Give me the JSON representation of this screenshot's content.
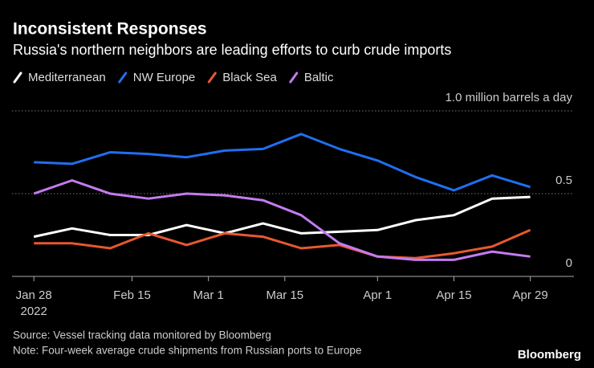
{
  "chart_data": {
    "type": "line",
    "title": "Inconsistent Responses",
    "subtitle": "Russia's northern neighbors are leading efforts to curb crude imports",
    "x": [
      "2022-01-28",
      "2022-02-04",
      "2022-02-11",
      "2022-02-18",
      "2022-02-25",
      "2022-03-04",
      "2022-03-11",
      "2022-03-18",
      "2022-03-25",
      "2022-04-01",
      "2022-04-08",
      "2022-04-15",
      "2022-04-22",
      "2022-04-29"
    ],
    "series": [
      {
        "name": "Mediterranean",
        "color": "#ffffff",
        "values": [
          0.24,
          0.29,
          0.25,
          0.25,
          0.31,
          0.26,
          0.32,
          0.26,
          0.27,
          0.28,
          0.34,
          0.37,
          0.47,
          0.48
        ]
      },
      {
        "name": "NW Europe",
        "color": "#1f6ff0",
        "values": [
          0.69,
          0.68,
          0.75,
          0.74,
          0.72,
          0.76,
          0.77,
          0.86,
          0.77,
          0.7,
          0.6,
          0.52,
          0.61,
          0.54
        ]
      },
      {
        "name": "Black Sea",
        "color": "#e8582f",
        "values": [
          0.2,
          0.2,
          0.17,
          0.26,
          0.19,
          0.26,
          0.24,
          0.17,
          0.19,
          0.12,
          0.11,
          0.14,
          0.18,
          0.28
        ]
      },
      {
        "name": "Baltic",
        "color": "#c47bf0",
        "values": [
          0.5,
          0.58,
          0.5,
          0.47,
          0.5,
          0.49,
          0.46,
          0.37,
          0.2,
          0.12,
          0.1,
          0.1,
          0.15,
          0.12
        ]
      }
    ],
    "xlim": [
      "2022-01-24",
      "2022-05-07"
    ],
    "xticks": [
      {
        "value": "2022-01-28",
        "label": "Jan 28"
      },
      {
        "value": "2022-02-15",
        "label": "Feb 15"
      },
      {
        "value": "2022-03-01",
        "label": "Mar 1"
      },
      {
        "value": "2022-03-15",
        "label": "Mar 15"
      },
      {
        "value": "2022-04-01",
        "label": "Apr 1"
      },
      {
        "value": "2022-04-15",
        "label": "Apr 15"
      },
      {
        "value": "2022-04-29",
        "label": "Apr 29"
      }
    ],
    "x_year_label": "2022",
    "ylim": [
      0,
      1
    ],
    "yticks": [
      0,
      0.5,
      {
        "value": 1,
        "label": "1.0 million barrels a day"
      }
    ],
    "grid": true,
    "source": "Source: Vessel tracking data monitored by Bloomberg",
    "note": "Note: Four-week average crude shipments from Russian ports to Europe",
    "brand": "Bloomberg"
  }
}
